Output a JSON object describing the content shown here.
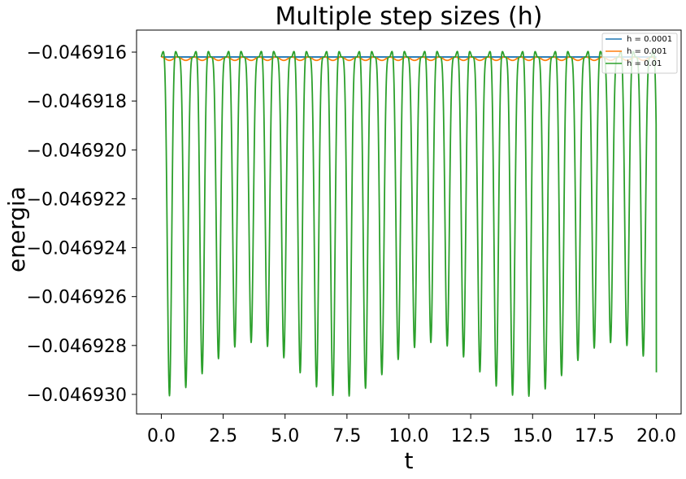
{
  "chart_data": {
    "type": "line",
    "title": "Multiple step sizes (h)",
    "xlabel": "t",
    "ylabel": "energia",
    "xlim": [
      -1.0,
      21.0
    ],
    "ylim": [
      -0.0469308,
      -0.0469151
    ],
    "xticks": [
      0.0,
      2.5,
      5.0,
      7.5,
      10.0,
      12.5,
      15.0,
      17.5,
      20.0
    ],
    "xtick_labels": [
      "0.0",
      "2.5",
      "5.0",
      "7.5",
      "10.0",
      "12.5",
      "15.0",
      "17.5",
      "20.0"
    ],
    "yticks": [
      -0.046916,
      -0.046918,
      -0.04692,
      -0.046922,
      -0.046924,
      -0.046926,
      -0.046928,
      -0.04693
    ],
    "ytick_labels": [
      "−0.046916",
      "−0.046918",
      "−0.046920",
      "−0.046922",
      "−0.046924",
      "−0.046926",
      "−0.046928",
      "−0.046930"
    ],
    "grid": false,
    "legend_position": "top-right",
    "series": [
      {
        "name": "h = 0.0001",
        "color": "#1f77b4",
        "x_range": [
          0,
          20
        ],
        "baseline": -0.0469162,
        "amplitude": 0.0,
        "period": 0.66
      },
      {
        "name": "h = 0.001",
        "color": "#ff7f0e",
        "x_range": [
          0,
          20
        ],
        "baseline": -0.0469162,
        "amplitude": 1.4e-07,
        "period": 0.66
      },
      {
        "name": "h = 0.01",
        "color": "#2ca02c",
        "x_range": [
          0,
          20
        ],
        "baseline": -0.0469162,
        "min": -0.0469301,
        "max": -0.0469158,
        "period": 0.66,
        "end_value": -0.0469291
      }
    ]
  }
}
